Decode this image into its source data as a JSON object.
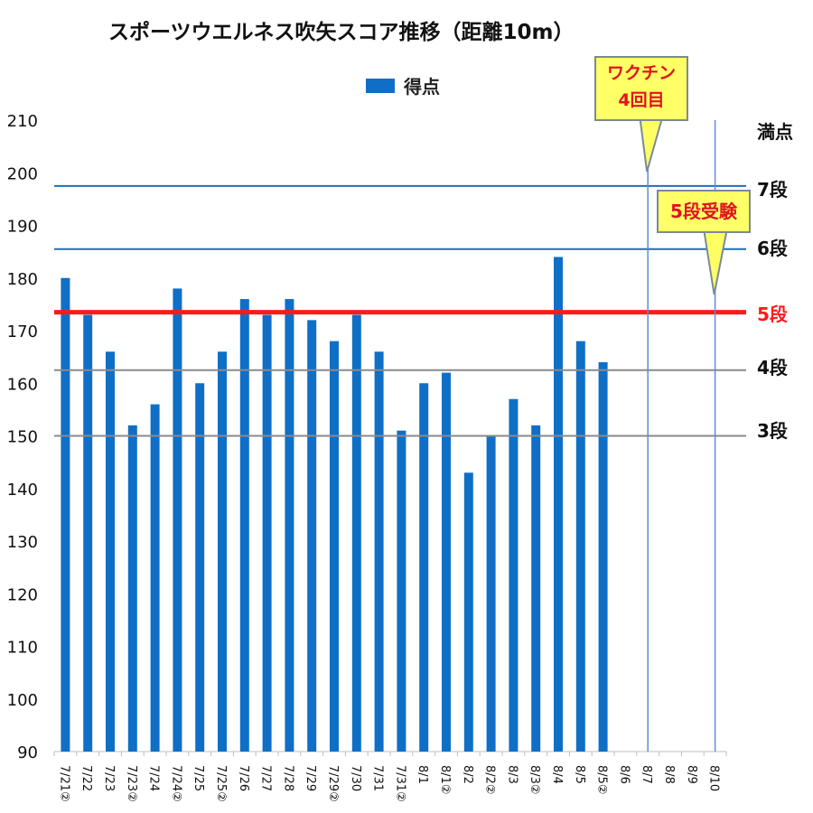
{
  "chart_data": {
    "type": "bar",
    "title": "スポーツウエルネス吹矢スコア推移（距離10m）",
    "legend": {
      "label": "得点",
      "position": "top",
      "color": "#0f6fc6"
    },
    "categories": [
      "7/21②",
      "7/22",
      "7/23",
      "7/23②",
      "7/24",
      "7/24②",
      "7/25",
      "7/25②",
      "7/26",
      "7/27",
      "7/28",
      "7/29",
      "7/29②",
      "7/30",
      "7/31",
      "7/31②",
      "8/1",
      "8/1②",
      "8/2",
      "8/2②",
      "8/3",
      "8/3②",
      "8/4",
      "8/5",
      "8/5②",
      "8/6",
      "8/7",
      "8/8",
      "8/9",
      "8/10"
    ],
    "series": [
      {
        "name": "得点",
        "values": [
          180,
          173,
          166,
          152,
          156,
          178,
          160,
          166,
          176,
          173,
          176,
          172,
          168,
          173,
          166,
          151,
          160,
          162,
          143,
          150,
          157,
          152,
          184,
          168,
          164,
          null,
          null,
          null,
          null,
          null
        ]
      }
    ],
    "ylim": [
      90,
      210
    ],
    "yticks": [
      90,
      100,
      110,
      120,
      130,
      140,
      150,
      160,
      170,
      180,
      190,
      200,
      210
    ],
    "grid": false,
    "reference_lines": [
      {
        "label": "満点",
        "value": null,
        "color": "#000000"
      },
      {
        "label": "7段",
        "value": 197.5,
        "color": "#1f6fb5"
      },
      {
        "label": "6段",
        "value": 185.5,
        "color": "#1f6fb5"
      },
      {
        "label": "5段",
        "value": 173.5,
        "color": "#ff1a1a"
      },
      {
        "label": "4段",
        "value": 162.5,
        "color": "#8a8a8a"
      },
      {
        "label": "3段",
        "value": 150,
        "color": "#8a8a8a"
      }
    ],
    "event_lines": [
      {
        "category": "8/7",
        "color": "#5b8fd6"
      },
      {
        "category": "8/10",
        "color": "#5b8fd6"
      }
    ],
    "annotations": {
      "vaccine": {
        "line1": "ワクチン",
        "line2": "4回目"
      },
      "exam": "5段受験"
    }
  }
}
